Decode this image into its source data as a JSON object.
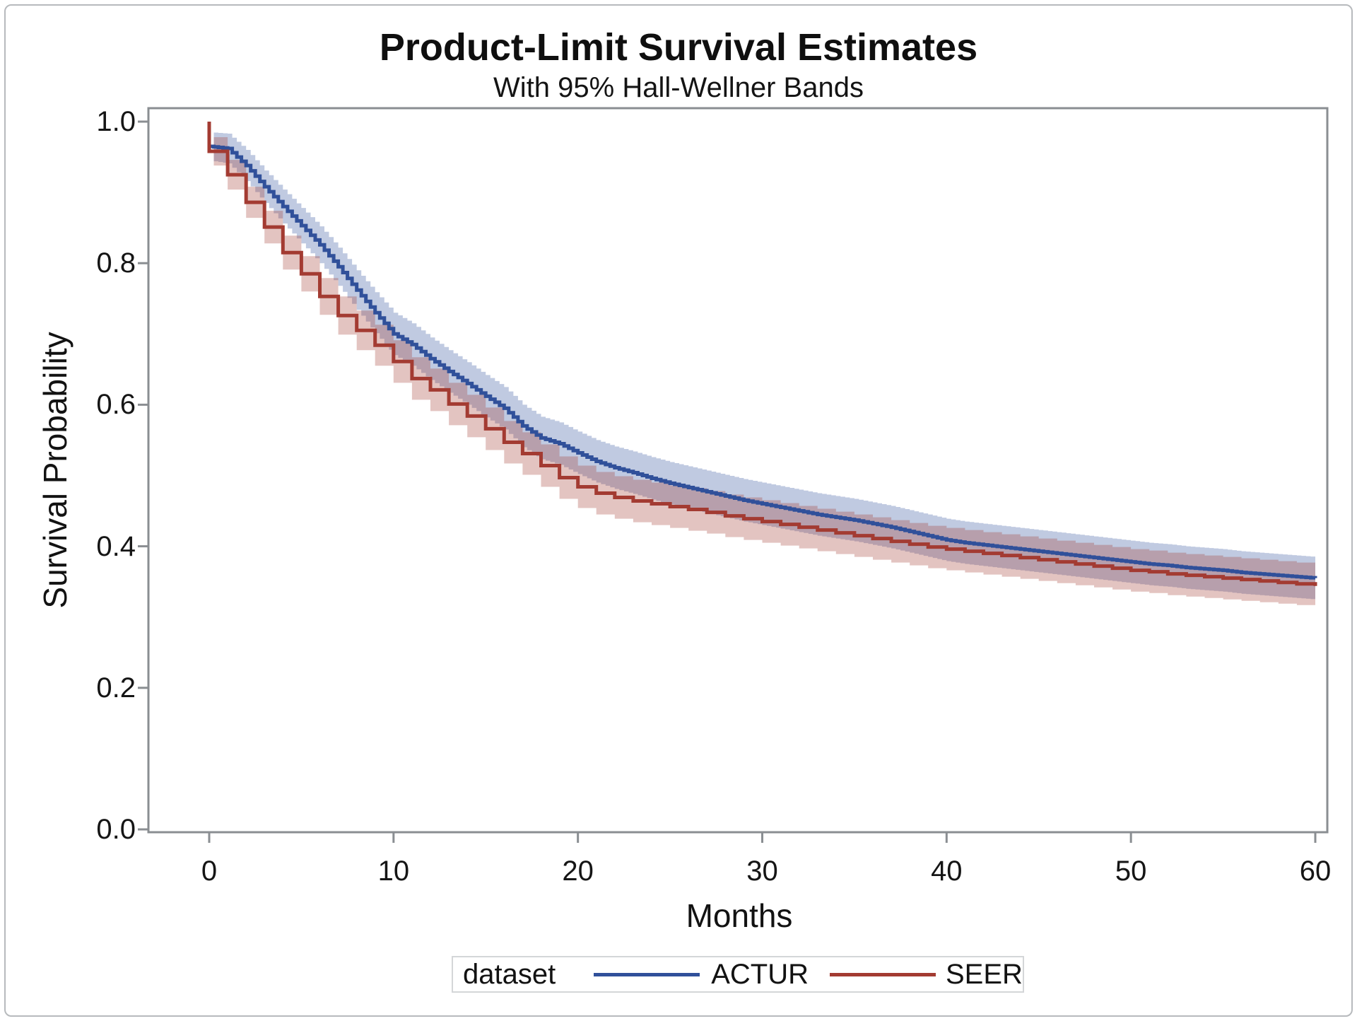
{
  "figure": {
    "title": "Product-Limit Survival Estimates",
    "subtitle": "With 95% Hall-Wellner Bands"
  },
  "axes": {
    "x": {
      "label": "Months",
      "ticks": [
        0,
        10,
        20,
        30,
        40,
        50,
        60
      ],
      "tick_labels": [
        "0",
        "10",
        "20",
        "30",
        "40",
        "50",
        "60"
      ],
      "range": [
        0,
        60
      ]
    },
    "y": {
      "label": "Survival Probability",
      "ticks": [
        0.0,
        0.2,
        0.4,
        0.6,
        0.8,
        1.0
      ],
      "tick_labels": [
        "0.0",
        "0.2",
        "0.4",
        "0.6",
        "0.8",
        "1.0"
      ],
      "range": [
        0,
        1
      ]
    }
  },
  "legend": {
    "title": "dataset",
    "entries": [
      {
        "label": "ACTUR",
        "color": "#30509A"
      },
      {
        "label": "SEER",
        "color": "#A33B32"
      }
    ]
  },
  "colors": {
    "axis": "#8A8E92",
    "frame_border": "#B7BABD",
    "legend_border": "#D4D6D8",
    "text": "#121212",
    "actur_line": "#30509A",
    "seer_line": "#A33B32",
    "band_opacity": 0.3
  },
  "chart_data": {
    "type": "line",
    "variant": "kaplan-meier-step-with-confidence-bands",
    "title": "Product-Limit Survival Estimates",
    "subtitle": "With 95% Hall-Wellner Bands",
    "xlabel": "Months",
    "ylabel": "Survival Probability",
    "xlim": [
      0,
      60
    ],
    "ylim": [
      0.0,
      1.0
    ],
    "grid": false,
    "legend_position": "bottom-outside",
    "band_note": "95% Hall-Wellner bands, drawn as translucent step regions around each curve; both curves start at probability 1.0 at month 0",
    "months": [
      0,
      1,
      2,
      3,
      4,
      5,
      6,
      7,
      8,
      9,
      10,
      11,
      12,
      13,
      14,
      15,
      16,
      17,
      18,
      19,
      20,
      21,
      22,
      23,
      24,
      25,
      26,
      27,
      28,
      29,
      30,
      31,
      32,
      33,
      34,
      35,
      36,
      37,
      38,
      39,
      40,
      41,
      42,
      43,
      44,
      45,
      46,
      47,
      48,
      49,
      50,
      51,
      52,
      53,
      54,
      55,
      56,
      57,
      58,
      59,
      60
    ],
    "series": [
      {
        "name": "ACTUR",
        "color": "#30509A",
        "start_value": 1.0,
        "step_substeps": 4,
        "values": [
          0.965,
          0.962,
          0.938,
          0.908,
          0.88,
          0.853,
          0.826,
          0.795,
          0.762,
          0.73,
          0.7,
          0.685,
          0.665,
          0.647,
          0.63,
          0.612,
          0.595,
          0.57,
          0.553,
          0.545,
          0.532,
          0.52,
          0.511,
          0.504,
          0.496,
          0.489,
          0.483,
          0.477,
          0.471,
          0.465,
          0.46,
          0.455,
          0.45,
          0.445,
          0.441,
          0.437,
          0.432,
          0.427,
          0.421,
          0.415,
          0.409,
          0.405,
          0.402,
          0.399,
          0.396,
          0.393,
          0.39,
          0.387,
          0.384,
          0.381,
          0.378,
          0.375,
          0.373,
          0.37,
          0.368,
          0.366,
          0.363,
          0.361,
          0.359,
          0.357,
          0.355
        ],
        "band_halfwidth": [
          0.02,
          0.021,
          0.022,
          0.023,
          0.024,
          0.025,
          0.026,
          0.027,
          0.028,
          0.029,
          0.03,
          0.03,
          0.03,
          0.03,
          0.03,
          0.03,
          0.03,
          0.03,
          0.03,
          0.03,
          0.03,
          0.03,
          0.03,
          0.03,
          0.03,
          0.03,
          0.03,
          0.03,
          0.03,
          0.03,
          0.03,
          0.03,
          0.03,
          0.03,
          0.03,
          0.03,
          0.03,
          0.03,
          0.03,
          0.03,
          0.03,
          0.03,
          0.03,
          0.03,
          0.03,
          0.03,
          0.03,
          0.03,
          0.03,
          0.03,
          0.03,
          0.03,
          0.03,
          0.03,
          0.03,
          0.03,
          0.03,
          0.03,
          0.03,
          0.03,
          0.03
        ]
      },
      {
        "name": "SEER",
        "color": "#A33B32",
        "start_value": 1.0,
        "step_substeps": 1,
        "values": [
          0.958,
          0.925,
          0.886,
          0.851,
          0.815,
          0.785,
          0.753,
          0.726,
          0.705,
          0.684,
          0.661,
          0.637,
          0.621,
          0.601,
          0.584,
          0.566,
          0.547,
          0.531,
          0.514,
          0.497,
          0.484,
          0.475,
          0.469,
          0.464,
          0.46,
          0.456,
          0.452,
          0.448,
          0.443,
          0.439,
          0.435,
          0.431,
          0.427,
          0.423,
          0.419,
          0.415,
          0.411,
          0.407,
          0.403,
          0.399,
          0.396,
          0.393,
          0.39,
          0.387,
          0.384,
          0.381,
          0.378,
          0.375,
          0.372,
          0.369,
          0.366,
          0.364,
          0.361,
          0.359,
          0.357,
          0.355,
          0.353,
          0.351,
          0.349,
          0.347,
          0.344
        ],
        "band_halfwidth": [
          0.02,
          0.021,
          0.022,
          0.023,
          0.024,
          0.025,
          0.026,
          0.027,
          0.028,
          0.029,
          0.03,
          0.03,
          0.03,
          0.03,
          0.03,
          0.03,
          0.03,
          0.03,
          0.03,
          0.03,
          0.03,
          0.03,
          0.03,
          0.03,
          0.03,
          0.03,
          0.03,
          0.03,
          0.03,
          0.03,
          0.03,
          0.03,
          0.03,
          0.03,
          0.03,
          0.03,
          0.03,
          0.03,
          0.03,
          0.03,
          0.03,
          0.03,
          0.03,
          0.03,
          0.03,
          0.03,
          0.03,
          0.03,
          0.03,
          0.03,
          0.03,
          0.03,
          0.03,
          0.03,
          0.03,
          0.03,
          0.03,
          0.03,
          0.03,
          0.03,
          0.03
        ]
      }
    ]
  }
}
